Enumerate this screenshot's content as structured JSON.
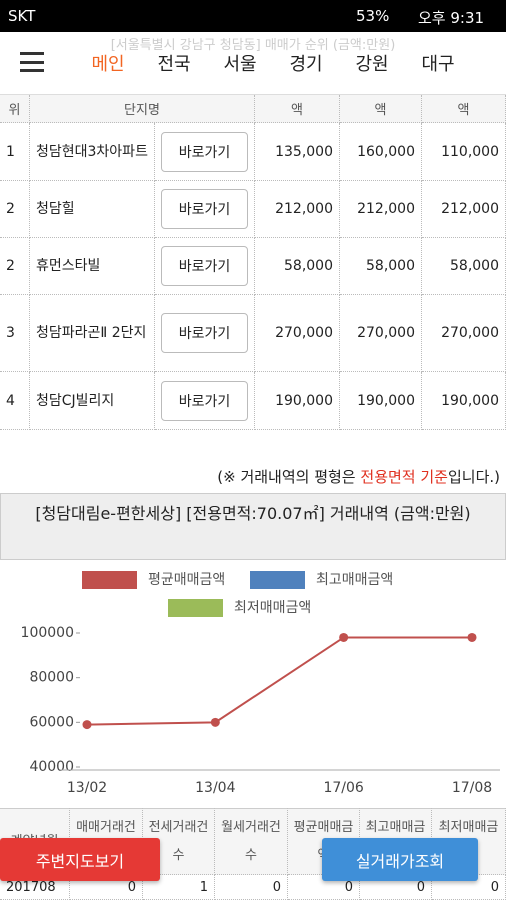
{
  "status": {
    "carrier": "SKT",
    "battery": "53%",
    "time": "오후 9:31"
  },
  "nav": {
    "tabs": [
      "메인",
      "전국",
      "서울",
      "경기",
      "강원",
      "대구"
    ]
  },
  "rank_table": {
    "caption": "[서울특별시 강남구 청담동] 매매가 순위 (금액:만원)",
    "header": [
      "위",
      "단지명",
      "액",
      "액",
      "액"
    ],
    "button": "바로가기",
    "rows": [
      [
        "1",
        "청담현대3차아파트",
        "135,000",
        "160,000",
        "110,000"
      ],
      [
        "2",
        "청담힐",
        "212,000",
        "212,000",
        "212,000"
      ],
      [
        "2",
        "휴먼스타빌",
        "58,000",
        "58,000",
        "58,000"
      ],
      [
        "3",
        "청담파라곤Ⅱ 2단지",
        "270,000",
        "270,000",
        "270,000"
      ],
      [
        "4",
        "청담CJ빌리지",
        "190,000",
        "190,000",
        "190,000"
      ]
    ]
  },
  "note": {
    "before": "(※ 거래내역의 평형은 ",
    "highlight": "전용면적 기준",
    "after": "입니다.)"
  },
  "chart_data": {
    "type": "line",
    "title": "[청담대림e-편한세상] [전용면적:70.07㎡] 거래내역 (금액:만원)",
    "categories": [
      "13/02",
      "13/04",
      "17/06",
      "17/08"
    ],
    "series": [
      {
        "name": "평균매매금액",
        "color": "#c0504d",
        "values": [
          59000,
          60000,
          98000,
          98000
        ]
      },
      {
        "name": "최고매매금액",
        "color": "#4f81bd",
        "values": [
          null,
          null,
          null,
          null
        ]
      },
      {
        "name": "최저매매금액",
        "color": "#9bbb59",
        "values": [
          null,
          null,
          null,
          null
        ]
      }
    ],
    "ylim": [
      40000,
      100000
    ],
    "yticks": [
      40000,
      60000,
      80000,
      100000
    ]
  },
  "history_table": {
    "header": [
      "계약년월",
      "매매거래건수",
      "전세거래건수",
      "월세거래건수",
      "평균매매금액",
      "최고매매금액",
      "최저매매금액"
    ],
    "rows": [
      [
        "201708",
        "0",
        "1",
        "0",
        "0",
        "0",
        "0"
      ]
    ]
  },
  "buttons": {
    "map": "주변지도보기",
    "search": "실거래가조회"
  }
}
